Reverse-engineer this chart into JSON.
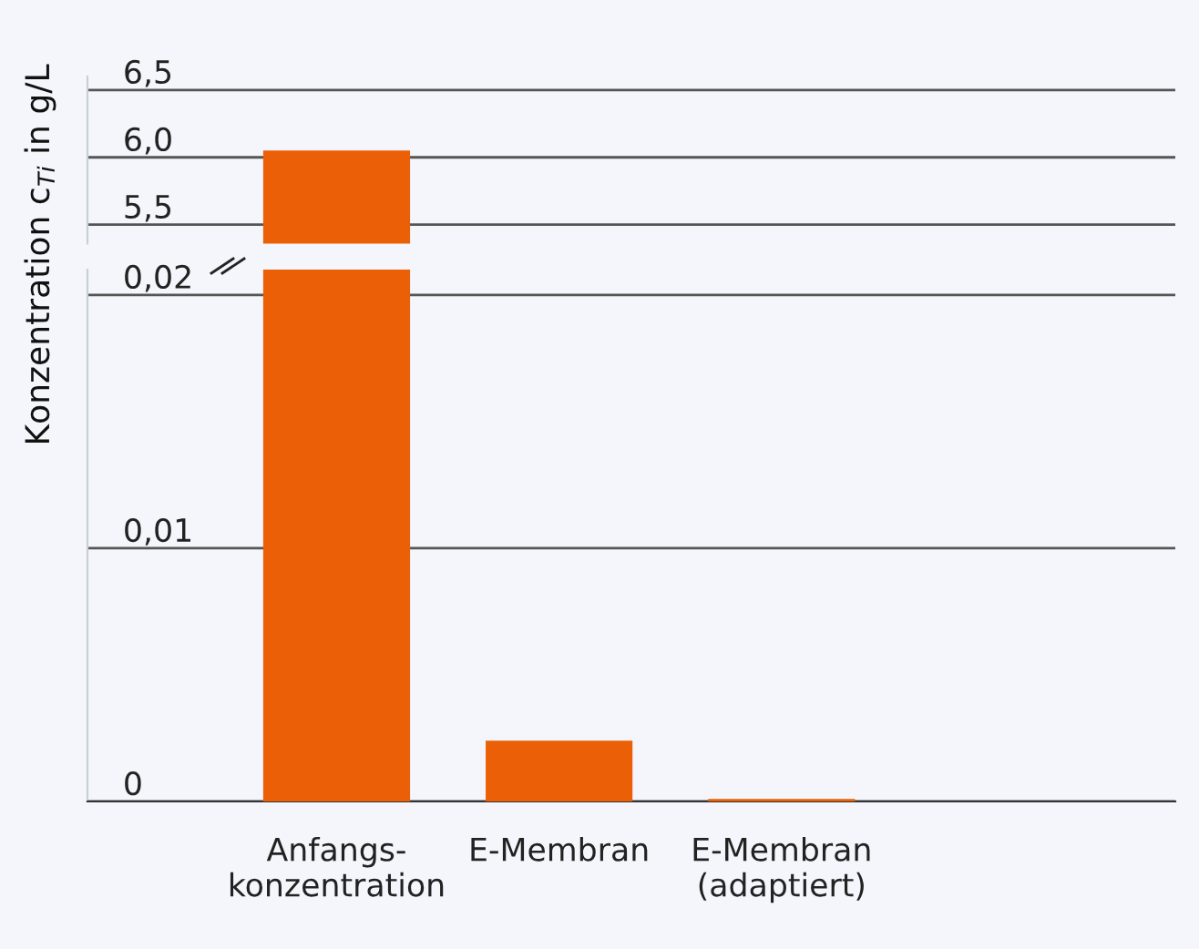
{
  "chart_data": [
    {
      "type": "bar",
      "ylabel": "Konzentration c$_{Ti}$ in g/L",
      "values": [
        6.05,
        null,
        null
      ],
      "color": "#eb5f06",
      "ylim": [
        5.36,
        6.6
      ],
      "yticks": [
        {
          "value": 5.5,
          "label": "5,5"
        },
        {
          "value": 6.0,
          "label": "6,0"
        },
        {
          "value": 6.5,
          "label": "6,5"
        }
      ],
      "grid": "y",
      "tick_labels": "y"
    },
    {
      "type": "bar",
      "categories": [
        "Anfangs-\nkonzentration",
        "E-Membran",
        "E-Membran\n(adaptiert)"
      ],
      "values": [
        0.021,
        0.0024,
        0.0001
      ],
      "color": "#eb5f06",
      "ylim": [
        0,
        0.021
      ],
      "yticks": [
        {
          "value": 0,
          "label": "0"
        },
        {
          "value": 0.01,
          "label": "0,01"
        },
        {
          "value": 0.02,
          "label": "0,02"
        }
      ],
      "grid": "y"
    }
  ]
}
